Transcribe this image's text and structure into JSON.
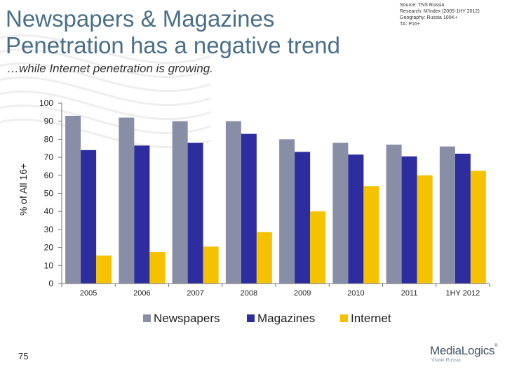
{
  "slide": {
    "title": "Newspapers & Magazines Penetration has a negative trend",
    "subtitle": "…while Internet penetration is growing.",
    "source_lines": [
      "Source: TNS Russia",
      "Research: M'Index (2005-1HY 2012)",
      "Geography: Russia 100K+",
      "TA: P16+"
    ],
    "page_number": "75",
    "logo": {
      "name": "MediaLogics",
      "tm": "®",
      "tagline": "Vivaki Russia"
    }
  },
  "colors": {
    "newspapers": "#888ea6",
    "magazines": "#2d2d9f",
    "internet": "#f5c200",
    "title": "#4a6f88"
  },
  "chart_data": {
    "type": "bar",
    "categories": [
      "2005",
      "2006",
      "2007",
      "2008",
      "2009",
      "2010",
      "2011",
      "1HY 2012"
    ],
    "series": [
      {
        "name": "Newspapers",
        "values": [
          93,
          92,
          90,
          90,
          80,
          78,
          77,
          76
        ]
      },
      {
        "name": "Magazines",
        "values": [
          74,
          76.5,
          78,
          83,
          73,
          71.5,
          70.5,
          72
        ]
      },
      {
        "name": "Internet",
        "values": [
          15.5,
          17.5,
          20.5,
          28.5,
          40,
          54,
          60,
          62.5
        ]
      }
    ],
    "ylabel": "% of All 16+",
    "ylim": [
      0,
      100
    ],
    "yticks": [
      "0",
      "10",
      "20",
      "30",
      "40",
      "50",
      "60",
      "70",
      "80",
      "90",
      "100"
    ],
    "legend_position": "bottom",
    "grid": false
  }
}
